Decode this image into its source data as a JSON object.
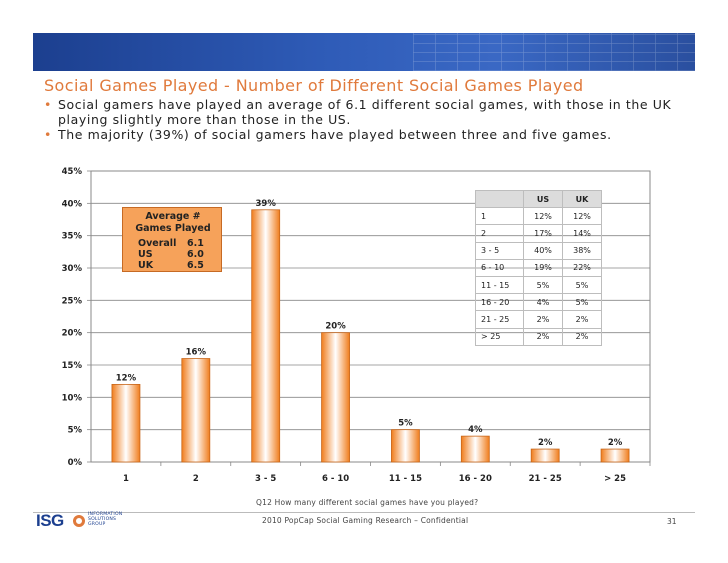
{
  "slide": {
    "title": "Social Games Played - Number of Different Social Games Played",
    "bullets": [
      "Social gamers have played an average of 6.1 different social games, with those in the UK playing slightly more than those in the US.",
      "The majority (39%) of social gamers have played between three and five games."
    ],
    "bullet_symbol": "•",
    "footnote": "Q12  How many different social games have you played?",
    "footer": "2010 PopCap Social Gaming Research –  Confidential",
    "page_number": "31",
    "logo": {
      "text": "ISG",
      "lines": [
        "INFORMATION",
        "SOLUTIONS",
        "GROUP"
      ]
    }
  },
  "average_box": {
    "header": "Average #\nGames Played",
    "rows": [
      {
        "label": "Overall",
        "value": "6.1"
      },
      {
        "label": "US",
        "value": "6.0"
      },
      {
        "label": "UK",
        "value": "6.5"
      }
    ]
  },
  "table": {
    "headers": [
      "",
      "US",
      "UK"
    ],
    "rows": [
      [
        "1",
        "12%",
        "12%"
      ],
      [
        "2",
        "17%",
        "14%"
      ],
      [
        "3 - 5",
        "40%",
        "38%"
      ],
      [
        "6 - 10",
        "19%",
        "22%"
      ],
      [
        "11 - 15",
        "5%",
        "5%"
      ],
      [
        "16 - 20",
        "4%",
        "5%"
      ],
      [
        "21 - 25",
        "2%",
        "2%"
      ],
      [
        "> 25",
        "2%",
        "2%"
      ]
    ]
  },
  "colors": {
    "title": "#e07a3c",
    "bar_edge": "#f07d1c",
    "bar_center": "#ffffff",
    "bar_stroke": "#c8661a",
    "banner": "#2f5cb8"
  },
  "chart_data": {
    "type": "bar",
    "categories": [
      "1",
      "2",
      "3 - 5",
      "6 - 10",
      "11 - 15",
      "16 - 20",
      "21 - 25",
      "> 25"
    ],
    "values": [
      12,
      16,
      39,
      20,
      5,
      4,
      2,
      2
    ],
    "data_labels": [
      "12%",
      "16%",
      "39%",
      "20%",
      "5%",
      "4%",
      "2%",
      "2%"
    ],
    "yticks": [
      "0%",
      "5%",
      "10%",
      "15%",
      "20%",
      "25%",
      "30%",
      "35%",
      "40%",
      "45%"
    ],
    "ylim": [
      0,
      45
    ],
    "grid": true,
    "legend": "none"
  }
}
